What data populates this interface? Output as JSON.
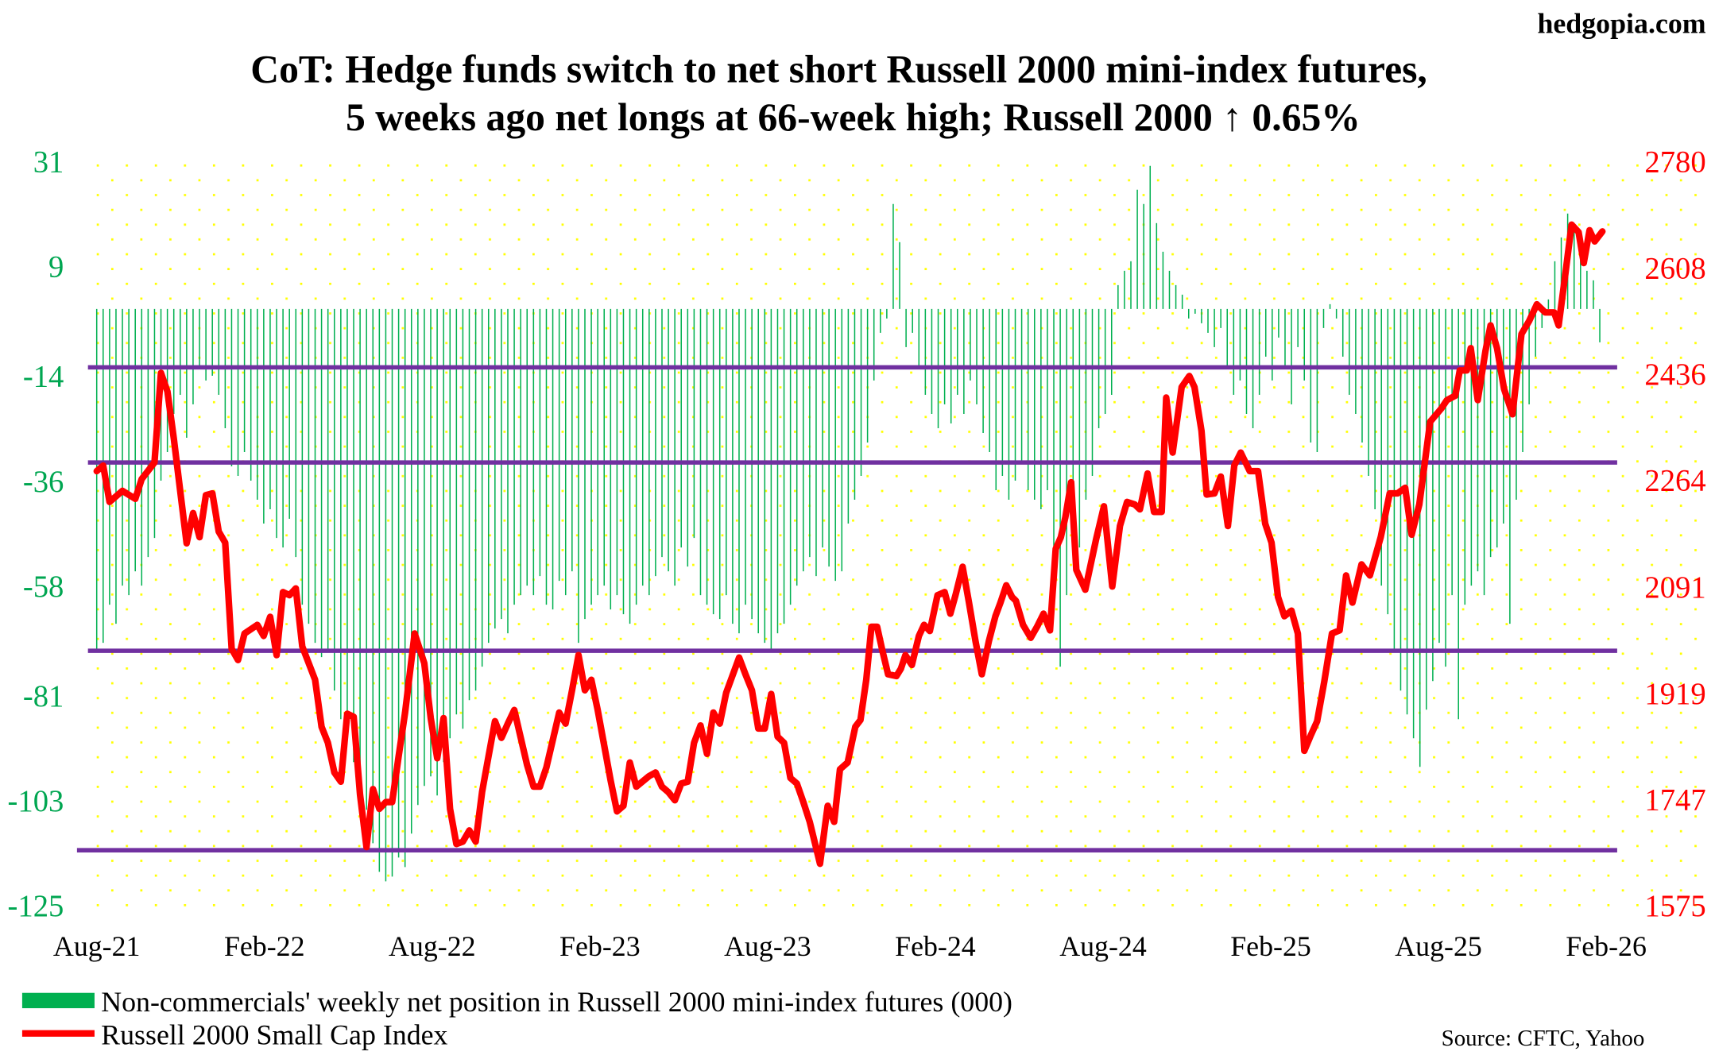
{
  "watermark": "hedgopia.com",
  "source": "Source: CFTC, Yahoo",
  "chart_data": {
    "type": "bar+line",
    "title": [
      "CoT: Hedge funds switch to net short Russell 2000 mini-index futures,",
      "5 weeks ago net longs at 66-week high; Russell 2000 ↑ 0.65%"
    ],
    "x_unit": "weeks since Aug-21",
    "xlim": [
      0,
      235
    ],
    "x_tick_labels": [
      "Aug-21",
      "Feb-22",
      "Aug-22",
      "Feb-23",
      "Aug-23",
      "Feb-24",
      "Aug-24",
      "Feb-25",
      "Aug-25",
      "Feb-26"
    ],
    "left_axis": {
      "ylim": [
        -125,
        31
      ],
      "ticks": [
        31,
        9,
        -14,
        -36,
        -58,
        -81,
        -103,
        -125
      ],
      "color": "#00a651"
    },
    "right_axis": {
      "ylim": [
        1575,
        2780
      ],
      "ticks": [
        2780,
        2608,
        2436,
        2264,
        2091,
        1919,
        1747,
        1575
      ],
      "color": "#ff0000"
    },
    "reference_lines_right_axis": [
      2446,
      2292,
      1987,
      1664
    ],
    "reference_line_color": "#7030a0",
    "legend": [
      {
        "label": "Non-commercials' weekly net position in Russell 2000 mini-index futures (000)",
        "color": "#00b050"
      },
      {
        "label": "Russell 2000 Small Cap Index",
        "color": "#ff0000"
      }
    ],
    "series": [
      {
        "name": "Non-commercials' weekly net position (000)",
        "type": "bar",
        "axis": "left",
        "values": [
          -72,
          -70,
          -62,
          -66,
          -58,
          -60,
          -55,
          -58,
          -52,
          -48,
          -36,
          -30,
          -22,
          -18,
          -27,
          -20,
          -12,
          -15,
          -14,
          -18,
          -25,
          -33,
          -35,
          -30,
          -36,
          -40,
          -45,
          -42,
          -48,
          -50,
          -44,
          -52,
          -62,
          -66,
          -70,
          -73,
          -72,
          -80,
          -86,
          -90,
          -95,
          -98,
          -105,
          -112,
          -118,
          -120,
          -119,
          -115,
          -117,
          -110,
          -104,
          -100,
          -98,
          -102,
          -95,
          -90,
          -85,
          -88,
          -82,
          -80,
          -75,
          -70,
          -67,
          -65,
          -68,
          -62,
          -60,
          -58,
          -60,
          -56,
          -62,
          -63,
          -57,
          -60,
          -55,
          -70,
          -65,
          -62,
          -60,
          -58,
          -63,
          -60,
          -64,
          -66,
          -62,
          -58,
          -60,
          -56,
          -52,
          -55,
          -58,
          -50,
          -54,
          -48,
          -60,
          -62,
          -64,
          -65,
          -60,
          -66,
          -68,
          -62,
          -65,
          -68,
          -70,
          -72,
          -68,
          -66,
          -62,
          -58,
          -55,
          -52,
          -56,
          -50,
          -54,
          -57,
          -55,
          -45,
          -40,
          -35,
          -28,
          -15,
          -5,
          -2,
          22,
          14,
          -8,
          -5,
          -12,
          -18,
          -22,
          -25,
          -20,
          -24,
          -18,
          -22,
          -15,
          -20,
          -26,
          -30,
          -38,
          -35,
          -40,
          -36,
          -32,
          -38,
          -40,
          -42,
          -38,
          -52,
          -75,
          -60,
          -45,
          -50,
          -40,
          -35,
          -25,
          -22,
          -18,
          5,
          8,
          10,
          25,
          22,
          30,
          18,
          12,
          8,
          5,
          3,
          -2,
          -1,
          -3,
          -5,
          -8,
          -4,
          -12,
          -18,
          -15,
          -22,
          -25,
          -18,
          -10,
          -15,
          -6,
          -12,
          -20,
          -8,
          -15,
          -28,
          -30,
          -4,
          1,
          -2,
          -10,
          -18,
          -22,
          -28,
          -35,
          -42,
          -58,
          -64,
          -72,
          -80,
          -85,
          -90,
          -96,
          -84,
          -78,
          -70,
          -75,
          -60,
          -86,
          -62,
          -58,
          -55,
          -60,
          -52,
          -50,
          -45,
          -66,
          -40,
          -30,
          -20,
          -10,
          -4,
          2,
          10,
          15,
          20,
          18,
          12,
          8,
          6,
          -7
        ]
      },
      {
        "name": "Russell 2000 Small Cap Index",
        "type": "line",
        "axis": "right",
        "points": [
          [
            0,
            2278
          ],
          [
            1,
            2287
          ],
          [
            2,
            2228
          ],
          [
            4,
            2246
          ],
          [
            6,
            2233
          ],
          [
            7,
            2265
          ],
          [
            9,
            2292
          ],
          [
            10,
            2437
          ],
          [
            11,
            2407
          ],
          [
            12,
            2331
          ],
          [
            14,
            2161
          ],
          [
            15,
            2210
          ],
          [
            16,
            2171
          ],
          [
            17,
            2239
          ],
          [
            18,
            2242
          ],
          [
            19,
            2180
          ],
          [
            20,
            2162
          ],
          [
            21,
            1990
          ],
          [
            22,
            1972
          ],
          [
            23,
            2015
          ],
          [
            25,
            2029
          ],
          [
            26,
            2011
          ],
          [
            27,
            2042
          ],
          [
            28,
            1980
          ],
          [
            29,
            2082
          ],
          [
            30,
            2077
          ],
          [
            31,
            2088
          ],
          [
            32,
            1994
          ],
          [
            34,
            1940
          ],
          [
            35,
            1864
          ],
          [
            36,
            1838
          ],
          [
            37,
            1790
          ],
          [
            38,
            1775
          ],
          [
            39,
            1885
          ],
          [
            40,
            1880
          ],
          [
            41,
            1754
          ],
          [
            42,
            1669
          ],
          [
            43,
            1763
          ],
          [
            44,
            1731
          ],
          [
            45,
            1742
          ],
          [
            46,
            1742
          ],
          [
            47,
            1816
          ],
          [
            48,
            1887
          ],
          [
            49.5,
            2015
          ],
          [
            51,
            1967
          ],
          [
            52,
            1878
          ],
          [
            53,
            1813
          ],
          [
            54,
            1878
          ],
          [
            55,
            1731
          ],
          [
            56,
            1674
          ],
          [
            57,
            1678
          ],
          [
            58,
            1696
          ],
          [
            59,
            1678
          ],
          [
            60,
            1759
          ],
          [
            61,
            1816
          ],
          [
            62,
            1873
          ],
          [
            63,
            1846
          ],
          [
            64,
            1869
          ],
          [
            65,
            1891
          ],
          [
            67,
            1802
          ],
          [
            68,
            1767
          ],
          [
            69,
            1767
          ],
          [
            70,
            1798
          ],
          [
            72,
            1887
          ],
          [
            73,
            1869
          ],
          [
            74,
            1923
          ],
          [
            75,
            1980
          ],
          [
            76,
            1923
          ],
          [
            77,
            1940
          ],
          [
            78,
            1891
          ],
          [
            80,
            1777
          ],
          [
            81,
            1727
          ],
          [
            82,
            1736
          ],
          [
            83,
            1806
          ],
          [
            84,
            1767
          ],
          [
            86,
            1784
          ],
          [
            87,
            1790
          ],
          [
            88,
            1767
          ],
          [
            89,
            1758
          ],
          [
            90,
            1745
          ],
          [
            91,
            1772
          ],
          [
            92,
            1775
          ],
          [
            93,
            1838
          ],
          [
            94,
            1866
          ],
          [
            95,
            1820
          ],
          [
            96,
            1887
          ],
          [
            97,
            1869
          ],
          [
            98,
            1919
          ],
          [
            100,
            1976
          ],
          [
            101,
            1949
          ],
          [
            102,
            1923
          ],
          [
            103,
            1861
          ],
          [
            104,
            1861
          ],
          [
            105,
            1917
          ],
          [
            106,
            1848
          ],
          [
            107,
            1838
          ],
          [
            108,
            1781
          ],
          [
            109,
            1772
          ],
          [
            110,
            1742
          ],
          [
            111,
            1710
          ],
          [
            112.6,
            1642
          ],
          [
            113.8,
            1736
          ],
          [
            114.8,
            1710
          ],
          [
            115.7,
            1795
          ],
          [
            116.9,
            1806
          ],
          [
            118.1,
            1864
          ],
          [
            118.9,
            1875
          ],
          [
            119.8,
            1940
          ],
          [
            120.6,
            2026
          ],
          [
            121.5,
            2026
          ],
          [
            122.3,
            1988
          ],
          [
            123.2,
            1949
          ],
          [
            124.5,
            1946
          ],
          [
            125.2,
            1958
          ],
          [
            125.9,
            1980
          ],
          [
            126.9,
            1964
          ],
          [
            128.0,
            2011
          ],
          [
            128.8,
            2029
          ],
          [
            129.7,
            2019
          ],
          [
            130.9,
            2077
          ],
          [
            132.0,
            2082
          ],
          [
            132.9,
            2047
          ],
          [
            133.7,
            2077
          ],
          [
            134.8,
            2123
          ],
          [
            135.8,
            2065
          ],
          [
            136.8,
            2003
          ],
          [
            137.8,
            1949
          ],
          [
            138.9,
            2003
          ],
          [
            139.9,
            2043
          ],
          [
            140.7,
            2065
          ],
          [
            141.6,
            2093
          ],
          [
            142.5,
            2074
          ],
          [
            143.1,
            2068
          ],
          [
            144.2,
            2029
          ],
          [
            145.4,
            2008
          ],
          [
            146.4,
            2026
          ],
          [
            147.4,
            2047
          ],
          [
            148.4,
            2020
          ],
          [
            149.3,
            2152
          ],
          [
            150.1,
            2171
          ],
          [
            150.8,
            2203
          ],
          [
            151.7,
            2260
          ],
          [
            152.5,
            2118
          ],
          [
            153.9,
            2086
          ],
          [
            155.6,
            2168
          ],
          [
            156.8,
            2221
          ],
          [
            158.1,
            2091
          ],
          [
            159.3,
            2189
          ],
          [
            160.4,
            2228
          ],
          [
            161.6,
            2224
          ],
          [
            162.4,
            2216
          ],
          [
            163.6,
            2274
          ],
          [
            164.6,
            2212
          ],
          [
            165.8,
            2212
          ],
          [
            166.5,
            2397
          ],
          [
            167.5,
            2308
          ],
          [
            168.9,
            2414
          ],
          [
            170.1,
            2432
          ],
          [
            170.9,
            2414
          ],
          [
            172.0,
            2343
          ],
          [
            172.8,
            2240
          ],
          [
            174.0,
            2242
          ],
          [
            175.0,
            2269
          ],
          [
            176.1,
            2189
          ],
          [
            177.1,
            2287
          ],
          [
            178.1,
            2308
          ],
          [
            179.5,
            2278
          ],
          [
            180.8,
            2278
          ],
          [
            181.9,
            2193
          ],
          [
            182.9,
            2162
          ],
          [
            183.9,
            2074
          ],
          [
            184.9,
            2043
          ],
          [
            186.0,
            2052
          ],
          [
            187.0,
            2015
          ],
          [
            188.0,
            1825
          ],
          [
            189.0,
            1850
          ],
          [
            190.0,
            1873
          ],
          [
            191.1,
            1937
          ],
          [
            192.3,
            2015
          ],
          [
            193.5,
            2020
          ],
          [
            194.5,
            2109
          ],
          [
            195.5,
            2065
          ],
          [
            196.9,
            2127
          ],
          [
            198.2,
            2109
          ],
          [
            199.9,
            2171
          ],
          [
            201.3,
            2242
          ],
          [
            202.5,
            2242
          ],
          [
            203.7,
            2251
          ],
          [
            204.7,
            2175
          ],
          [
            205.9,
            2224
          ],
          [
            207.6,
            2358
          ],
          [
            209.3,
            2379
          ],
          [
            210.2,
            2393
          ],
          [
            211.5,
            2400
          ],
          [
            212.2,
            2441
          ],
          [
            213.3,
            2441
          ],
          [
            213.9,
            2477
          ],
          [
            215.0,
            2393
          ],
          [
            216.2,
            2472
          ],
          [
            217.0,
            2514
          ],
          [
            218.0,
            2477
          ],
          [
            219.1,
            2411
          ],
          [
            220.4,
            2370
          ],
          [
            221.8,
            2500
          ],
          [
            223.0,
            2521
          ],
          [
            224.2,
            2548
          ],
          [
            225.5,
            2535
          ],
          [
            226.9,
            2535
          ],
          [
            227.6,
            2514
          ],
          [
            228.6,
            2594
          ],
          [
            229.6,
            2677
          ],
          [
            230.7,
            2665
          ],
          [
            231.5,
            2615
          ],
          [
            232.4,
            2668
          ],
          [
            233.2,
            2650
          ],
          [
            234.4,
            2666
          ]
        ]
      }
    ]
  }
}
